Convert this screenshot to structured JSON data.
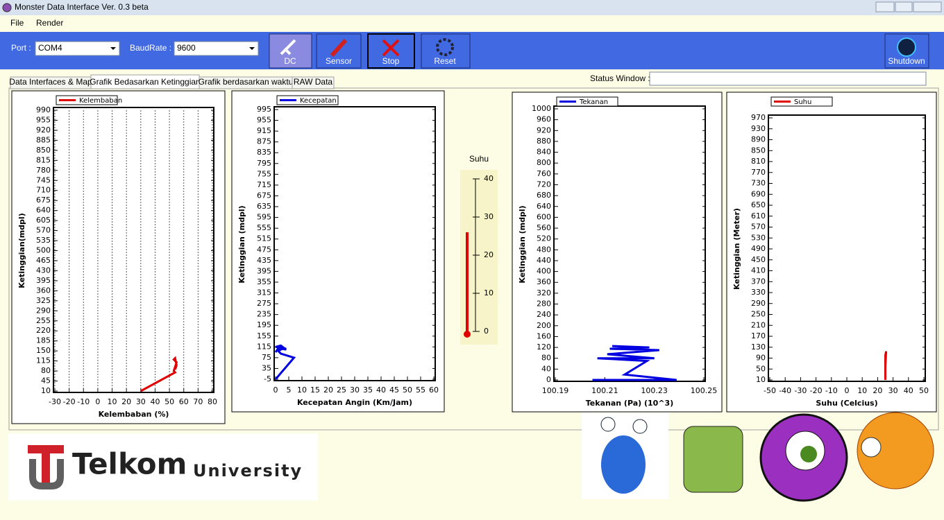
{
  "window": {
    "title": "Monster Data Interface Ver. 0.3 beta"
  },
  "menu": [
    "File",
    "Render"
  ],
  "toolbar": {
    "port_label": "Port :",
    "port": "COM4",
    "baud_label": "BaudRate :",
    "baud": "9600",
    "buttons": [
      "DC",
      "Sensor",
      "Stop",
      "Reset"
    ],
    "shutdown": "Shutdown"
  },
  "tabs": [
    "Data Interfaces & Map",
    "Grafik Bedasarkan Ketinggian",
    "Grafik berdasarkan waktu",
    "RAW Data"
  ],
  "status": {
    "label": "Status Window :"
  },
  "chart_data": [
    {
      "type": "line",
      "xlabel": "Kelembaban (%)",
      "ylabel": "Ketinggian(mdpl)",
      "grid": true,
      "xlim": [
        -30,
        80
      ],
      "xticks": [
        -30,
        -20,
        -10,
        0,
        10,
        20,
        30,
        40,
        50,
        60,
        70,
        80
      ],
      "ylim": [
        10,
        990
      ],
      "yticks": [
        10,
        45,
        80,
        115,
        150,
        185,
        220,
        255,
        290,
        325,
        360,
        395,
        430,
        465,
        500,
        535,
        570,
        605,
        640,
        675,
        710,
        745,
        780,
        815,
        850,
        885,
        920,
        955,
        990
      ],
      "series": [
        {
          "name": "Kelembaban",
          "color": "#e00000",
          "x": [
            30,
            54,
            53,
            54,
            55,
            53,
            54,
            55,
            54
          ],
          "y": [
            10,
            75,
            80,
            95,
            110,
            120,
            125,
            100,
            85
          ]
        }
      ]
    },
    {
      "type": "line",
      "xlabel": "Kecepatan Angin (Km/Jam)",
      "ylabel": "Ketinggian (mdpl)",
      "grid": false,
      "xlim": [
        0,
        60
      ],
      "xticks": [
        0,
        5,
        10,
        15,
        20,
        25,
        30,
        35,
        40,
        45,
        50,
        55,
        60
      ],
      "ylim": [
        -5,
        995
      ],
      "yticks": [
        -5,
        35,
        75,
        115,
        155,
        195,
        235,
        275,
        315,
        355,
        395,
        435,
        475,
        515,
        555,
        595,
        635,
        675,
        715,
        755,
        795,
        835,
        875,
        915,
        955,
        995
      ],
      "series": [
        {
          "name": "Kecepatan",
          "color": "#0000e0",
          "x": [
            0,
            7,
            2,
            1,
            3,
            0,
            2,
            4,
            1,
            0
          ],
          "y": [
            -5,
            75,
            90,
            100,
            110,
            115,
            120,
            105,
            110,
            95
          ]
        }
      ]
    },
    {
      "type": "thermometer",
      "title": "Suhu",
      "ylim": [
        0,
        40
      ],
      "yticks": [
        0,
        10,
        20,
        30,
        40
      ],
      "values": [
        26
      ],
      "color": "#e00000"
    },
    {
      "type": "line",
      "xlabel": "Tekanan (Pa) (10^3)",
      "ylabel": "Ketinggian (mdpl)",
      "grid": false,
      "xlim": [
        100.19,
        100.25
      ],
      "xticks": [
        100.19,
        100.21,
        100.23,
        100.25
      ],
      "ylim": [
        0,
        1000
      ],
      "yticks": [
        0,
        40,
        80,
        120,
        160,
        200,
        240,
        280,
        320,
        360,
        400,
        440,
        480,
        520,
        560,
        600,
        640,
        680,
        720,
        760,
        800,
        840,
        880,
        920,
        960,
        1000
      ],
      "series": [
        {
          "name": "Tekanan",
          "color": "#0000e0",
          "x": [
            100.205,
            100.239,
            100.218,
            100.227,
            100.207,
            100.23,
            100.211,
            100.232,
            100.212,
            100.228,
            100.213
          ],
          "y": [
            0,
            0,
            20,
            70,
            80,
            80,
            95,
            110,
            115,
            120,
            125
          ]
        }
      ]
    },
    {
      "type": "line",
      "xlabel": "Suhu (Celcius)",
      "ylabel": "Ketinggian (Meter)",
      "grid": false,
      "xlim": [
        -50,
        50
      ],
      "xticks": [
        -50,
        -40,
        -30,
        -20,
        -10,
        0,
        10,
        20,
        30,
        40,
        50
      ],
      "ylim": [
        10,
        970
      ],
      "yticks": [
        10,
        50,
        90,
        130,
        170,
        210,
        250,
        290,
        330,
        370,
        410,
        450,
        490,
        530,
        570,
        610,
        650,
        690,
        730,
        770,
        810,
        850,
        890,
        930,
        970
      ],
      "series": [
        {
          "name": "Suhu",
          "color": "#e00000",
          "x": [
            25,
            25,
            25.5,
            25,
            25
          ],
          "y": [
            10,
            60,
            115,
            100,
            10
          ]
        }
      ]
    }
  ],
  "logo": {
    "name": "Telkom",
    "sub": "University"
  }
}
